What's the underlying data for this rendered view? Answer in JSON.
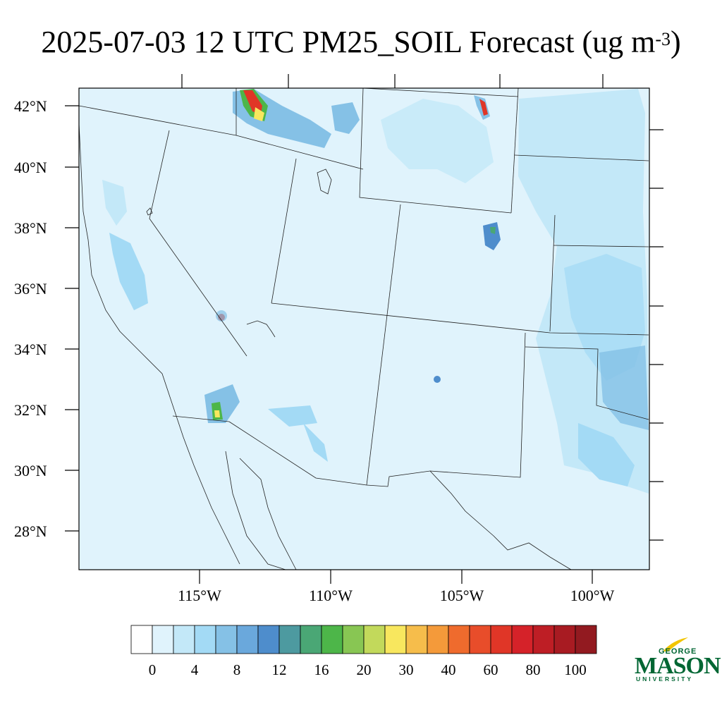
{
  "title": {
    "main": "2025-07-03 12 UTC PM25_SOIL Forecast (ug m",
    "sup": "-3",
    "close": ")"
  },
  "axes": {
    "lat_labels": [
      "42°N",
      "40°N",
      "38°N",
      "36°N",
      "34°N",
      "32°N",
      "30°N",
      "28°N"
    ],
    "lon_labels": [
      "115°W",
      "110°W",
      "105°W",
      "100°W"
    ]
  },
  "colorbar": {
    "labels": [
      "0",
      "4",
      "8",
      "12",
      "16",
      "20",
      "30",
      "40",
      "60",
      "80",
      "100"
    ],
    "colors": [
      "#ffffff",
      "#e0f3fc",
      "#c3e8f8",
      "#a3daf5",
      "#85c1e6",
      "#6aa8dc",
      "#4e8dcc",
      "#4d9aa0",
      "#4aa775",
      "#4db649",
      "#88c653",
      "#c2d95b",
      "#f8e75e",
      "#f6bd4b",
      "#f49a3a",
      "#ef6b2d",
      "#e84d2a",
      "#e03627",
      "#d52229",
      "#be1e25",
      "#a81b22",
      "#921a20"
    ]
  },
  "logo": {
    "line1": "GEORGE",
    "line2": "MASON",
    "line3": "UNIVERSITY"
  },
  "map_colors": {
    "background": "#e0f3fc",
    "light": "#c3e8f8",
    "mid": "#a3daf5",
    "dark": "#85c1e6",
    "deep": "#6aa8dc",
    "green": "#4db649",
    "yellow": "#f8e75e",
    "red": "#e03627"
  }
}
